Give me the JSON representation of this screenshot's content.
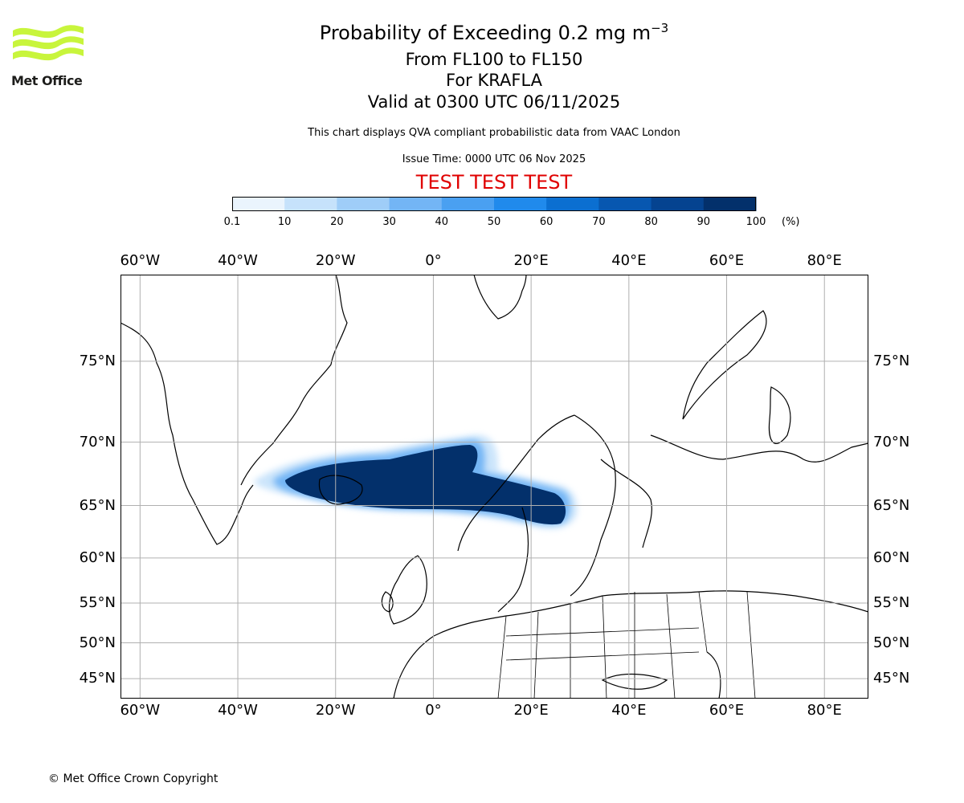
{
  "header": {
    "title_prefix": "Probability of Exceeding 0.2 mg m",
    "title_exponent": "−3",
    "levels": "From FL100 to FL150",
    "volcano": "For KRAFLA",
    "valid": "Valid at 0300 UTC 06/11/2025",
    "description": "This chart displays QVA compliant probabilistic data from VAAC London",
    "issue_time": "Issue Time: 0000 UTC 06 Nov 2025",
    "test_banner": "TEST TEST TEST"
  },
  "logo": {
    "name": "Met Office",
    "colors": [
      "#c8f53c",
      "#a8e22a"
    ]
  },
  "colorbar": {
    "unit": "(%)",
    "ticks": [
      "0.1",
      "10",
      "20",
      "30",
      "40",
      "50",
      "60",
      "70",
      "80",
      "90",
      "100"
    ],
    "colors": [
      "#eaf4fd",
      "#c6e2fb",
      "#9fcdf8",
      "#73b5f5",
      "#4aa0f1",
      "#208aec",
      "#0b6fd1",
      "#0757b0",
      "#054390",
      "#03306b"
    ]
  },
  "map": {
    "x_ticks_top": [
      "60°W",
      "40°W",
      "20°W",
      "0°",
      "20°E",
      "40°E",
      "60°E",
      "80°E"
    ],
    "x_ticks_bottom": [
      "60°W",
      "40°W",
      "20°W",
      "0°",
      "20°E",
      "40°E",
      "60°E",
      "80°E"
    ],
    "y_ticks_left": [
      "75°N",
      "70°N",
      "65°N",
      "60°N",
      "55°N",
      "50°N",
      "45°N"
    ],
    "y_ticks_right": [
      "75°N",
      "70°N",
      "65°N",
      "60°N",
      "55°N",
      "50°N",
      "45°N"
    ],
    "lon_range": [
      -64,
      89
    ],
    "lat_range": [
      42,
      79
    ],
    "ash_plume": "Probability > 90% plume extending from Iceland across Norwegian Sea to Scandinavia and Gulf of Bothnia"
  },
  "footer": {
    "copyright": "© Met Office Crown Copyright"
  }
}
